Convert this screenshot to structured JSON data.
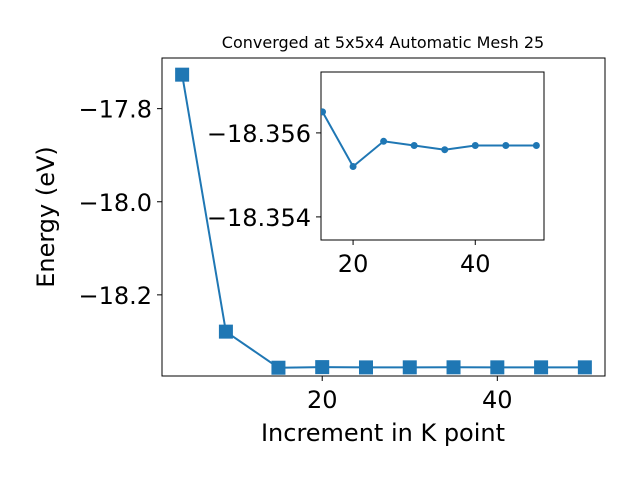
{
  "chart_data": [
    {
      "type": "line",
      "title": "Converged at 5x5x4 Automatic Mesh 25",
      "xlabel": "Increment in K point",
      "ylabel": "Energy (eV)",
      "x": [
        4,
        9,
        15,
        20,
        25,
        30,
        35,
        40,
        45,
        50
      ],
      "series": [
        {
          "values": [
            -17.727,
            -18.279,
            -18.3565,
            -18.3552,
            -18.3558,
            -18.3557,
            -18.3556,
            -18.3557,
            -18.3557,
            -18.3557
          ]
        }
      ],
      "xlim": [
        1.7,
        52.3
      ],
      "ylim": [
        -18.3743,
        -17.6912
      ],
      "xticks": [
        20,
        40
      ],
      "xtick_labels": [
        "20",
        "40"
      ],
      "yticks": [
        -17.8,
        -18.0,
        -18.2
      ],
      "ytick_labels": [
        "−17.8",
        "−18.0",
        "−18.2"
      ],
      "marker": "square",
      "color": "#1f77b4",
      "grid": false
    },
    {
      "type": "line",
      "title": "",
      "x": [
        15,
        20,
        25,
        30,
        35,
        40,
        45,
        50
      ],
      "series": [
        {
          "values": [
            -18.3565,
            -18.3552,
            -18.3558,
            -18.3557,
            -18.3556,
            -18.3557,
            -18.3557,
            -18.3557
          ]
        }
      ],
      "xlim": [
        14.75,
        51.25
      ],
      "ylim": [
        -18.35345,
        -18.35745
      ],
      "xticks": [
        20,
        40
      ],
      "xtick_labels": [
        "20",
        "40"
      ],
      "yticks": [
        -18.356,
        -18.354
      ],
      "ytick_labels": [
        "−18.356",
        "−18.354"
      ],
      "marker": "circle",
      "color": "#1f77b4",
      "grid": false
    }
  ]
}
